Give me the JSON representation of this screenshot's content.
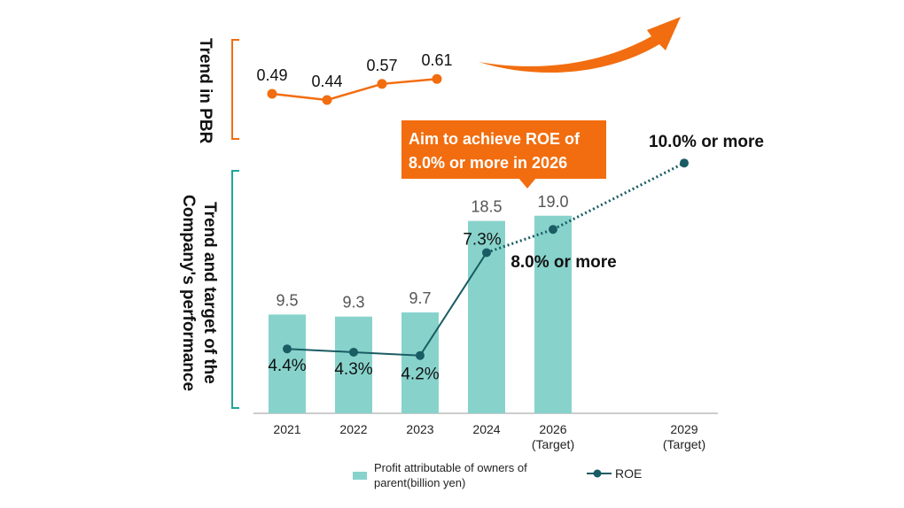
{
  "pbr_label": "Trend in PBR",
  "performance_label": "Trend and target of the Company's performance",
  "callout": {
    "line1": "Aim to achieve ROE of",
    "line2": "8.0% or more in 2026"
  },
  "legend": {
    "bars": "Profit attributable of owners of parent(billion yen)",
    "line": "ROE"
  },
  "colors": {
    "accent": "#F26D0F",
    "bar": "#87D3CC",
    "roe": "#1A5C63",
    "bracket_perf": "#1FA59A"
  },
  "chart_data": [
    {
      "type": "line",
      "title": "Trend in PBR",
      "categories": [
        "2021",
        "2022",
        "2023",
        "2024"
      ],
      "values": [
        0.49,
        0.44,
        0.57,
        0.61
      ],
      "labels": [
        "0.49",
        "0.44",
        "0.57",
        "0.61"
      ],
      "trend": "upward arrow (future)"
    },
    {
      "type": "bar",
      "title": "Trend and target of the Company's performance",
      "categories": [
        "2021",
        "2022",
        "2023",
        "2024",
        "2026\n(Target)",
        "2029\n(Target)"
      ],
      "series": [
        {
          "name": "Profit attributable of owners of parent(billion yen)",
          "values": [
            9.5,
            9.3,
            9.7,
            18.5,
            19.0,
            null
          ],
          "labels": [
            "9.5",
            "9.3",
            "9.7",
            "18.5",
            "19.0",
            ""
          ]
        },
        {
          "name": "ROE",
          "type": "line",
          "unit": "%",
          "values": [
            4.4,
            4.3,
            4.2,
            7.3,
            8.0,
            10.0
          ],
          "labels": [
            "4.4%",
            "4.3%",
            "4.2%",
            "7.3%",
            "8.0% or more",
            "10.0% or more"
          ],
          "target_from_index": 3
        }
      ],
      "ylim": [
        0,
        22
      ]
    }
  ]
}
